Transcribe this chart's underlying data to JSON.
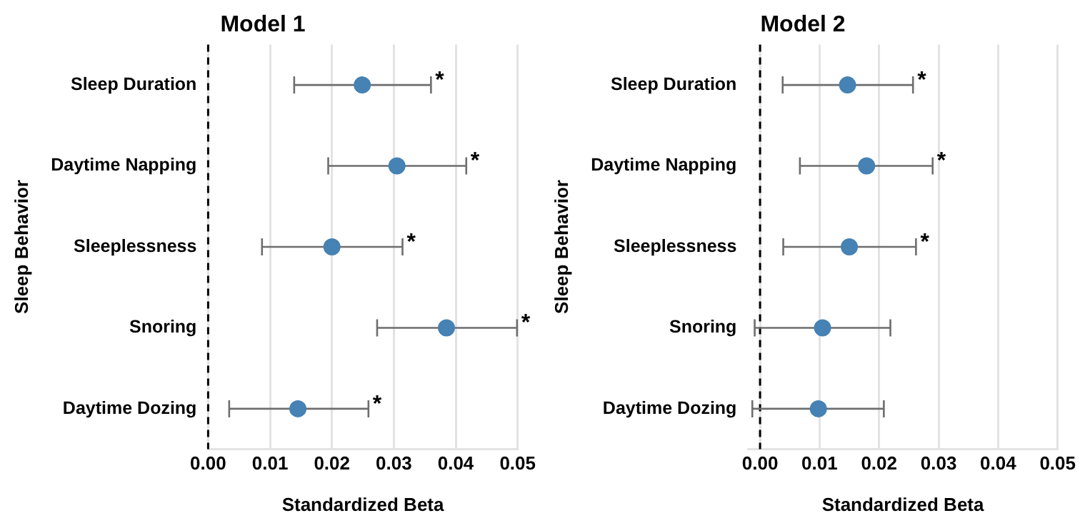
{
  "chart_data": [
    {
      "type": "scatter",
      "orientation": "horizontal",
      "title": "Model 1",
      "xlabel": "Standardized Beta",
      "ylabel": "Sleep Behavior",
      "categories": [
        "Sleep Duration",
        "Daytime Napping",
        "Sleeplessness",
        "Snoring",
        "Daytime Dozing"
      ],
      "series": [
        {
          "color": "#4682b4",
          "values": [
            0.0249,
            0.0305,
            0.02,
            0.0385,
            0.0145
          ],
          "errors": [
            [
              0.0139,
              0.036
            ],
            [
              0.0194,
              0.0417
            ],
            [
              0.0087,
              0.0314
            ],
            [
              0.0273,
              0.0499
            ],
            [
              0.0034,
              0.0259
            ]
          ]
        }
      ],
      "xlim": [
        0,
        0.05
      ],
      "xticks": [
        {
          "value": 0,
          "label": "0.00"
        },
        {
          "value": 0.01,
          "label": "0.01"
        },
        {
          "value": 0.02,
          "label": "0.02"
        },
        {
          "value": 0.03,
          "label": "0.03"
        },
        {
          "value": 0.04,
          "label": "0.04"
        },
        {
          "value": 0.05,
          "label": "0.05"
        }
      ],
      "grid": "x",
      "marker": "circle",
      "legend": false,
      "ref_lines": [
        {
          "axis": "x",
          "value": 0,
          "line_style": "dashed",
          "color": "#000000"
        }
      ],
      "annotations": [
        {
          "text": "*",
          "x": 0.036,
          "y": "Sleep Duration"
        },
        {
          "text": "*",
          "x": 0.0417,
          "y": "Daytime Napping"
        },
        {
          "text": "*",
          "x": 0.0314,
          "y": "Sleeplessness"
        },
        {
          "text": "*",
          "x": 0.0499,
          "y": "Snoring"
        },
        {
          "text": "*",
          "x": 0.0259,
          "y": "Daytime Dozing"
        }
      ]
    },
    {
      "type": "scatter",
      "orientation": "horizontal",
      "title": "Model 2",
      "xlabel": "Standardized Beta",
      "ylabel": "Sleep Behavior",
      "categories": [
        "Sleep Duration",
        "Daytime Napping",
        "Sleeplessness",
        "Snoring",
        "Daytime Dozing"
      ],
      "series": [
        {
          "color": "#4682b4",
          "values": [
            0.0147,
            0.0179,
            0.015,
            0.0105,
            0.0098
          ],
          "errors": [
            [
              0.0038,
              0.0257
            ],
            [
              0.0067,
              0.029
            ],
            [
              0.0039,
              0.0262
            ],
            [
              -0.0009,
              0.0219
            ],
            [
              -0.0013,
              0.0208
            ]
          ]
        }
      ],
      "xlim": [
        -0.002,
        0.05
      ],
      "xticks": [
        {
          "value": 0,
          "label": "0.00"
        },
        {
          "value": 0.01,
          "label": "0.01"
        },
        {
          "value": 0.02,
          "label": "0.02"
        },
        {
          "value": 0.03,
          "label": "0.03"
        },
        {
          "value": 0.04,
          "label": "0.04"
        },
        {
          "value": 0.05,
          "label": "0.05"
        }
      ],
      "grid": "x",
      "marker": "circle",
      "legend": false,
      "ref_lines": [
        {
          "axis": "x",
          "value": 0,
          "line_style": "dashed",
          "color": "#000000"
        }
      ],
      "annotations": [
        {
          "text": "*",
          "x": 0.0257,
          "y": "Sleep Duration"
        },
        {
          "text": "*",
          "x": 0.029,
          "y": "Daytime Napping"
        },
        {
          "text": "*",
          "x": 0.0262,
          "y": "Sleeplessness"
        }
      ]
    }
  ]
}
